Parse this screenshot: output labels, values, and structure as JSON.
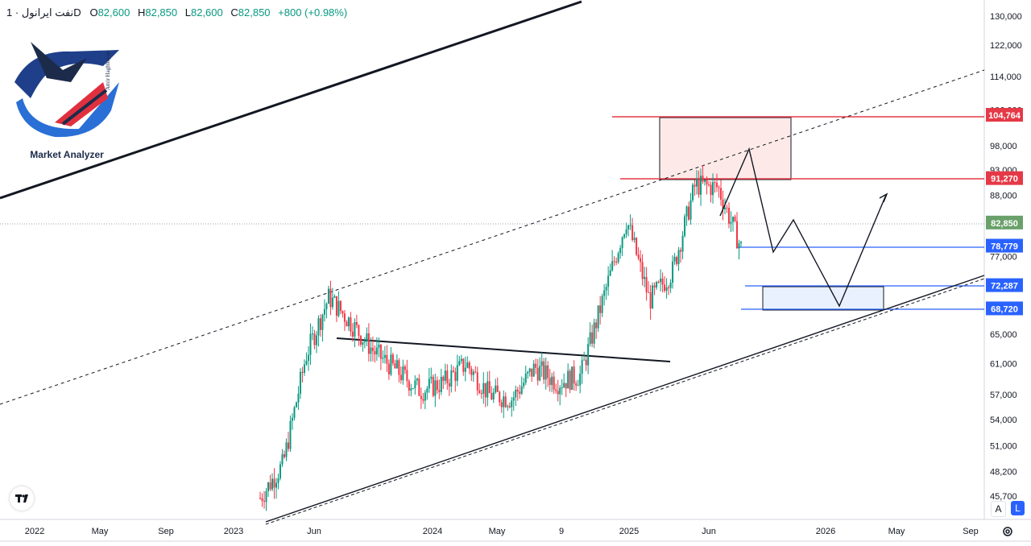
{
  "header": {
    "symbol": "نفت ایرانول",
    "interval": "1D",
    "open_label": "O",
    "open": "82,600",
    "high_label": "H",
    "high": "82,850",
    "low_label": "L",
    "low": "82,600",
    "close_label": "C",
    "close": "82,850",
    "change": "+800 (+0.98%)"
  },
  "logo": {
    "text": "Market Analyzer",
    "vertical_text": "Amir Haghbayan"
  },
  "controls": {
    "auto_scale": "A",
    "log_scale": "L",
    "settings_icon": "gear-icon",
    "tv_logo_icon": "tradingview-logo-icon"
  },
  "colors": {
    "up": "#089981",
    "down": "#f23645",
    "resistance": "#e53947",
    "support": "#2962ff",
    "last_price": "#6aa06a",
    "supply_zone_fill": "#fdeae8",
    "demand_zone_fill": "#e8f1fd"
  },
  "chart_data": {
    "type": "candlestick",
    "title": "نفت ایرانول",
    "interval": "1D",
    "y_scale": "log",
    "ylim": [
      44500,
      134000
    ],
    "x_ticks": [
      "2022",
      "May",
      "Sep",
      "2023",
      "Jun",
      "2024",
      "May",
      "9",
      "2025",
      "Jun",
      "2026",
      "May",
      "Sep"
    ],
    "y_ticks": [
      130000,
      122000,
      114000,
      106000,
      98000,
      93000,
      88000,
      77000,
      72000,
      65000,
      61000,
      57000,
      54000,
      51000,
      48200,
      45700
    ],
    "price_series": {
      "x": [
        "2022-12",
        "2023-01",
        "2023-03",
        "2023-05",
        "2023-06",
        "2023-07",
        "2023-09",
        "2023-11",
        "2024-01",
        "2024-02",
        "2024-04",
        "2024-06",
        "2024-08",
        "2024-09",
        "2024-10",
        "2024-12",
        "2025-01",
        "2025-03",
        "2025-04",
        "2025-06",
        "2025-07",
        "2025-08"
      ],
      "close": [
        45500,
        49000,
        62000,
        70500,
        66500,
        62500,
        60000,
        57500,
        58500,
        61000,
        57000,
        56500,
        60500,
        58500,
        59500,
        70500,
        83500,
        70000,
        74500,
        90000,
        89500,
        78500
      ]
    },
    "horizontal_levels": [
      {
        "label": "104,764",
        "value": 104764,
        "color": "#e53947"
      },
      {
        "label": "91,270",
        "value": 91270,
        "color": "#e53947"
      },
      {
        "label": "82,850",
        "value": 82850,
        "color": "#6aa06a"
      },
      {
        "label": "78,779",
        "value": 78779,
        "color": "#2962ff"
      },
      {
        "label": "72,287",
        "value": 72287,
        "color": "#2962ff"
      },
      {
        "label": "68,720",
        "value": 68720,
        "color": "#2962ff"
      }
    ],
    "zones": [
      {
        "type": "supply",
        "from": 91270,
        "to": 104764
      },
      {
        "type": "demand",
        "from": 68720,
        "to": 72287
      }
    ],
    "projected_path": [
      {
        "x": "2025-07",
        "y": 82850
      },
      {
        "x": "2025-08",
        "y": 78500
      },
      {
        "x": "2025-09",
        "y": 82500
      },
      {
        "x": "2026-01",
        "y": 68720
      },
      {
        "x": "2026-05",
        "y": 88000
      }
    ],
    "grid": false,
    "legend": "none"
  }
}
